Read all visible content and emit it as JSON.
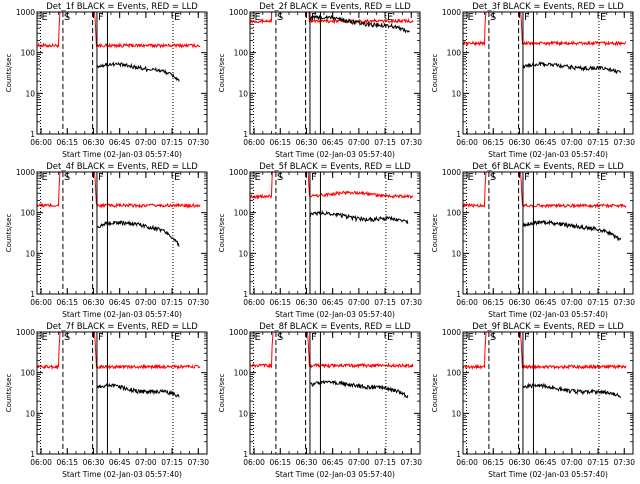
{
  "chart_data": [
    {
      "type": "line",
      "title": "Det_1f BLACK = Events, RED = LLD",
      "xlabel": "Start Time (02-Jan-03 05:57:40)",
      "ylabel": "Counts/sec",
      "x_ticks": [
        "06:00",
        "06:15",
        "06:30",
        "06:45",
        "07:00",
        "07:15",
        "07:30"
      ],
      "xlim": [
        "05:57:40",
        "07:35:00"
      ],
      "ylim": [
        1,
        1000
      ],
      "y_scale": "log",
      "y_ticks": [
        "1",
        "10",
        "100",
        "1000"
      ],
      "markers": [
        {
          "label": "E",
          "time": "05:59:40",
          "style": "dotted"
        },
        {
          "label": "S",
          "time": "06:12:30",
          "style": "dashed"
        },
        {
          "label": "",
          "time": "06:29:30",
          "style": "dashed"
        },
        {
          "label": "F",
          "time": "06:32:00",
          "style": "solid"
        },
        {
          "label": "",
          "time": "06:38:00",
          "style": "solid"
        },
        {
          "label": "E",
          "time": "07:15:30",
          "style": "dotted"
        }
      ],
      "series": [
        {
          "name": "RED = LLD",
          "color": "#ff0000",
          "base": 150,
          "spike_start": "06:11:00",
          "spike_end": "06:30:30",
          "end": "07:31:00",
          "shape": "flat"
        },
        {
          "name": "BLACK = Events",
          "color": "#000000",
          "start": "06:32:00",
          "end": "07:19:00",
          "start_value": 45,
          "mid_value": 50,
          "end_value": 20
        }
      ]
    },
    {
      "type": "line",
      "title": "Det_2f BLACK = Events, RED = LLD",
      "xlabel": "Start Time (02-Jan-03 05:57:40)",
      "ylabel": "Counts/sec",
      "x_ticks": [
        "06:00",
        "06:15",
        "06:30",
        "06:45",
        "07:00",
        "07:15",
        "07:30"
      ],
      "xlim": [
        "05:57:40",
        "07:35:00"
      ],
      "ylim": [
        1,
        1000
      ],
      "y_scale": "log",
      "y_ticks": [
        "1",
        "10",
        "100",
        "1000"
      ],
      "markers": [
        {
          "label": "E",
          "time": "05:59:40",
          "style": "dotted"
        },
        {
          "label": "S",
          "time": "06:12:30",
          "style": "dashed"
        },
        {
          "label": "",
          "time": "06:29:30",
          "style": "dashed"
        },
        {
          "label": "F",
          "time": "06:32:00",
          "style": "solid"
        },
        {
          "label": "",
          "time": "06:38:00",
          "style": "solid"
        },
        {
          "label": "E",
          "time": "07:15:30",
          "style": "dotted"
        }
      ],
      "series": [
        {
          "name": "RED = LLD",
          "color": "#ff0000",
          "base": 600,
          "spike_start": "06:11:00",
          "spike_end": "06:30:30",
          "end": "07:31:00",
          "shape": "flat"
        },
        {
          "name": "BLACK = Events",
          "color": "#000000",
          "start": "06:32:00",
          "end": "07:29:00",
          "start_value": 700,
          "mid_value": 600,
          "end_value": 300
        }
      ]
    },
    {
      "type": "line",
      "title": "Det_3f BLACK = Events, RED = LLD",
      "xlabel": "Start Time (02-Jan-03 05:57:40)",
      "ylabel": "Counts/sec",
      "x_ticks": [
        "06:00",
        "06:15",
        "06:30",
        "06:45",
        "07:00",
        "07:15",
        "07:30"
      ],
      "xlim": [
        "05:57:40",
        "07:35:00"
      ],
      "ylim": [
        1,
        1000
      ],
      "y_scale": "log",
      "y_ticks": [
        "1",
        "10",
        "100",
        "1000"
      ],
      "markers": [
        {
          "label": "E",
          "time": "05:59:40",
          "style": "dotted"
        },
        {
          "label": "S",
          "time": "06:12:30",
          "style": "dashed"
        },
        {
          "label": "",
          "time": "06:29:30",
          "style": "dashed"
        },
        {
          "label": "F",
          "time": "06:32:00",
          "style": "solid"
        },
        {
          "label": "",
          "time": "06:38:00",
          "style": "solid"
        },
        {
          "label": "E",
          "time": "07:15:30",
          "style": "dotted"
        }
      ],
      "series": [
        {
          "name": "RED = LLD",
          "color": "#ff0000",
          "base": 170,
          "spike_start": "06:11:00",
          "spike_end": "06:30:30",
          "end": "07:31:00",
          "shape": "flat"
        },
        {
          "name": "BLACK = Events",
          "color": "#000000",
          "start": "06:32:00",
          "end": "07:28:00",
          "start_value": 45,
          "mid_value": 50,
          "end_value": 30
        }
      ]
    },
    {
      "type": "line",
      "title": "Det_4f BLACK = Events, RED = LLD",
      "xlabel": "Start Time (02-Jan-03 05:57:40)",
      "ylabel": "Counts/sec",
      "x_ticks": [
        "06:00",
        "06:15",
        "06:30",
        "06:45",
        "07:00",
        "07:15",
        "07:30"
      ],
      "xlim": [
        "05:57:40",
        "07:35:00"
      ],
      "ylim": [
        1,
        1000
      ],
      "y_scale": "log",
      "y_ticks": [
        "1",
        "10",
        "100",
        "1000"
      ],
      "markers": [
        {
          "label": "E",
          "time": "05:59:40",
          "style": "dotted"
        },
        {
          "label": "S",
          "time": "06:12:30",
          "style": "dashed"
        },
        {
          "label": "",
          "time": "06:29:30",
          "style": "dashed"
        },
        {
          "label": "F",
          "time": "06:32:00",
          "style": "solid"
        },
        {
          "label": "",
          "time": "06:38:00",
          "style": "solid"
        },
        {
          "label": "E",
          "time": "07:15:30",
          "style": "dotted"
        }
      ],
      "series": [
        {
          "name": "RED = LLD",
          "color": "#ff0000",
          "base": 150,
          "spike_start": "06:11:00",
          "spike_end": "06:30:30",
          "end": "07:31:00",
          "shape": "flat"
        },
        {
          "name": "BLACK = Events",
          "color": "#000000",
          "start": "06:32:00",
          "end": "07:19:00",
          "start_value": 45,
          "mid_value": 60,
          "end_value": 15
        }
      ]
    },
    {
      "type": "line",
      "title": "Det_5f BLACK = Events, RED = LLD",
      "xlabel": "Start Time (02-Jan-03 05:57:40)",
      "ylabel": "Counts/sec",
      "x_ticks": [
        "06:00",
        "06:15",
        "06:30",
        "06:45",
        "07:00",
        "07:15",
        "07:30"
      ],
      "xlim": [
        "05:57:40",
        "07:35:00"
      ],
      "ylim": [
        1,
        1000
      ],
      "y_scale": "log",
      "y_ticks": [
        "1",
        "10",
        "100",
        "1000"
      ],
      "markers": [
        {
          "label": "E",
          "time": "05:59:40",
          "style": "dotted"
        },
        {
          "label": "S",
          "time": "06:12:30",
          "style": "dashed"
        },
        {
          "label": "",
          "time": "06:29:30",
          "style": "dashed"
        },
        {
          "label": "F",
          "time": "06:32:00",
          "style": "solid"
        },
        {
          "label": "",
          "time": "06:38:00",
          "style": "solid"
        },
        {
          "label": "E",
          "time": "07:15:30",
          "style": "dotted"
        }
      ],
      "series": [
        {
          "name": "RED = LLD",
          "color": "#ff0000",
          "base": 250,
          "spike_start": "06:11:00",
          "spike_end": "06:30:30",
          "end": "07:31:00",
          "shape": "hump"
        },
        {
          "name": "BLACK = Events",
          "color": "#000000",
          "start": "06:32:00",
          "end": "07:28:00",
          "start_value": 90,
          "mid_value": 80,
          "end_value": 55
        }
      ]
    },
    {
      "type": "line",
      "title": "Det_6f BLACK = Events, RED = LLD",
      "xlabel": "Start Time (02-Jan-03 05:57:40)",
      "ylabel": "Counts/sec",
      "x_ticks": [
        "06:00",
        "06:15",
        "06:30",
        "06:45",
        "07:00",
        "07:15",
        "07:30"
      ],
      "xlim": [
        "05:57:40",
        "07:35:00"
      ],
      "ylim": [
        1,
        1000
      ],
      "y_scale": "log",
      "y_ticks": [
        "1",
        "10",
        "100",
        "1000"
      ],
      "markers": [
        {
          "label": "E",
          "time": "05:59:40",
          "style": "dotted"
        },
        {
          "label": "S",
          "time": "06:12:30",
          "style": "dashed"
        },
        {
          "label": "",
          "time": "06:29:30",
          "style": "dashed"
        },
        {
          "label": "F",
          "time": "06:32:00",
          "style": "solid"
        },
        {
          "label": "",
          "time": "06:38:00",
          "style": "solid"
        },
        {
          "label": "E",
          "time": "07:15:30",
          "style": "dotted"
        }
      ],
      "series": [
        {
          "name": "RED = LLD",
          "color": "#ff0000",
          "base": 150,
          "spike_start": "06:11:00",
          "spike_end": "06:30:30",
          "end": "07:31:00",
          "shape": "flat"
        },
        {
          "name": "BLACK = Events",
          "color": "#000000",
          "start": "06:32:00",
          "end": "07:28:00",
          "start_value": 50,
          "mid_value": 55,
          "end_value": 20
        }
      ]
    },
    {
      "type": "line",
      "title": "Det_7f BLACK = Events, RED = LLD",
      "xlabel": "Start Time (02-Jan-03 05:57:40)",
      "ylabel": "Counts/sec",
      "x_ticks": [
        "06:00",
        "06:15",
        "06:30",
        "06:45",
        "07:00",
        "07:15",
        "07:30"
      ],
      "xlim": [
        "05:57:40",
        "07:35:00"
      ],
      "ylim": [
        1,
        1000
      ],
      "y_scale": "log",
      "y_ticks": [
        "1",
        "10",
        "100",
        "1000"
      ],
      "markers": [
        {
          "label": "E",
          "time": "05:59:40",
          "style": "dotted"
        },
        {
          "label": "S",
          "time": "06:12:30",
          "style": "dashed"
        },
        {
          "label": "",
          "time": "06:29:30",
          "style": "dashed"
        },
        {
          "label": "F",
          "time": "06:32:00",
          "style": "solid"
        },
        {
          "label": "",
          "time": "06:38:00",
          "style": "solid"
        },
        {
          "label": "E",
          "time": "07:15:30",
          "style": "dotted"
        }
      ],
      "series": [
        {
          "name": "RED = LLD",
          "color": "#ff0000",
          "base": 140,
          "spike_start": "06:11:00",
          "spike_end": "06:30:30",
          "end": "07:31:00",
          "shape": "flat"
        },
        {
          "name": "BLACK = Events",
          "color": "#000000",
          "start": "06:32:00",
          "end": "07:19:00",
          "start_value": 45,
          "mid_value": 40,
          "end_value": 25
        }
      ]
    },
    {
      "type": "line",
      "title": "Det_8f BLACK = Events, RED = LLD",
      "xlabel": "Start Time (02-Jan-03 05:57:40)",
      "ylabel": "Counts/sec",
      "x_ticks": [
        "06:00",
        "06:15",
        "06:30",
        "06:45",
        "07:00",
        "07:15",
        "07:30"
      ],
      "xlim": [
        "05:57:40",
        "07:35:00"
      ],
      "ylim": [
        1,
        1000
      ],
      "y_scale": "log",
      "y_ticks": [
        "1",
        "10",
        "100",
        "1000"
      ],
      "markers": [
        {
          "label": "E",
          "time": "05:59:40",
          "style": "dotted"
        },
        {
          "label": "S",
          "time": "06:12:30",
          "style": "dashed"
        },
        {
          "label": "",
          "time": "06:29:30",
          "style": "dashed"
        },
        {
          "label": "F",
          "time": "06:32:00",
          "style": "solid"
        },
        {
          "label": "",
          "time": "06:38:00",
          "style": "solid"
        },
        {
          "label": "E",
          "time": "07:15:30",
          "style": "dotted"
        }
      ],
      "series": [
        {
          "name": "RED = LLD",
          "color": "#ff0000",
          "base": 150,
          "spike_start": "06:11:00",
          "spike_end": "06:30:30",
          "end": "07:31:00",
          "shape": "flat"
        },
        {
          "name": "BLACK = Events",
          "color": "#000000",
          "start": "06:32:00",
          "end": "07:28:00",
          "start_value": 50,
          "mid_value": 55,
          "end_value": 25
        }
      ]
    },
    {
      "type": "line",
      "title": "Det_9f BLACK = Events, RED = LLD",
      "xlabel": "Start Time (02-Jan-03 05:57:40)",
      "ylabel": "Counts/sec",
      "x_ticks": [
        "06:00",
        "06:15",
        "06:30",
        "06:45",
        "07:00",
        "07:15",
        "07:30"
      ],
      "xlim": [
        "05:57:40",
        "07:35:00"
      ],
      "ylim": [
        1,
        1000
      ],
      "y_scale": "log",
      "y_ticks": [
        "1",
        "10",
        "100",
        "1000"
      ],
      "markers": [
        {
          "label": "E",
          "time": "05:59:40",
          "style": "dotted"
        },
        {
          "label": "S",
          "time": "06:12:30",
          "style": "dashed"
        },
        {
          "label": "",
          "time": "06:29:30",
          "style": "dashed"
        },
        {
          "label": "F",
          "time": "06:32:00",
          "style": "solid"
        },
        {
          "label": "",
          "time": "06:38:00",
          "style": "solid"
        },
        {
          "label": "E",
          "time": "07:15:30",
          "style": "dotted"
        }
      ],
      "series": [
        {
          "name": "RED = LLD",
          "color": "#ff0000",
          "base": 140,
          "spike_start": "06:11:00",
          "spike_end": "06:30:30",
          "end": "07:31:00",
          "shape": "flat"
        },
        {
          "name": "BLACK = Events",
          "color": "#000000",
          "start": "06:32:00",
          "end": "07:28:00",
          "start_value": 45,
          "mid_value": 40,
          "end_value": 25
        }
      ]
    }
  ]
}
